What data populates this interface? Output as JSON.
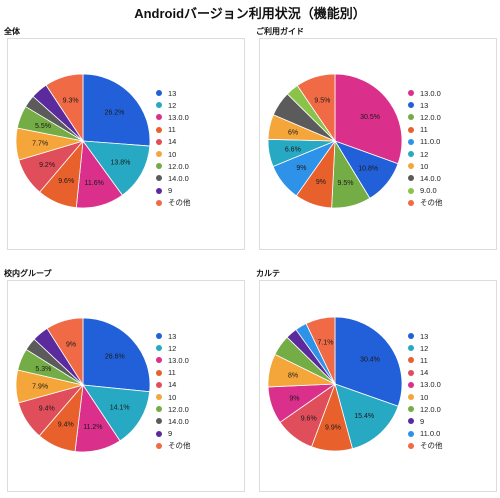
{
  "page_title": "Androidバージョン利用状況（機能別）",
  "chart_data": [
    {
      "type": "pie",
      "title": "全体",
      "labels": [
        "13",
        "12",
        "13.0.0",
        "11",
        "14",
        "10",
        "12.0.0",
        "14.0.0",
        "9",
        "その他"
      ],
      "values": [
        26.2,
        13.8,
        11.6,
        9.6,
        9.2,
        7.7,
        5.5,
        3.0,
        4.1,
        9.3
      ],
      "data_labels": [
        "26.2%",
        "13.8%",
        "11.6%",
        "9.6%",
        "9.2%",
        "7.7%",
        "5.5%",
        "",
        "",
        "9.3%"
      ],
      "colors": [
        "#2160d8",
        "#27a9c3",
        "#db2f8c",
        "#e8612c",
        "#e04e5b",
        "#f4a63a",
        "#74ac45",
        "#5b5b5b",
        "#5b2b9e",
        "#ef6a45"
      ],
      "legend_position": "right"
    },
    {
      "type": "pie",
      "title": "ご利用ガイド",
      "labels": [
        "13.0.0",
        "13",
        "12.0.0",
        "11",
        "11.0.0",
        "12",
        "10",
        "14.0.0",
        "9.0.0",
        "その他"
      ],
      "values": [
        30.5,
        10.8,
        9.5,
        9.0,
        9.0,
        6.6,
        6.0,
        6.0,
        3.1,
        9.5
      ],
      "data_labels": [
        "30.5%",
        "10.8%",
        "9.5%",
        "9%",
        "9%",
        "6.6%",
        "6%",
        "",
        "",
        "9.5%"
      ],
      "colors": [
        "#db2f8c",
        "#2160d8",
        "#74ac45",
        "#e8612c",
        "#2e92e8",
        "#27a9c3",
        "#f4a63a",
        "#5b5b5b",
        "#8bc34a",
        "#ef6a45"
      ],
      "legend_position": "right"
    },
    {
      "type": "pie",
      "title": "校内グループ",
      "labels": [
        "13",
        "12",
        "13.0.0",
        "11",
        "14",
        "10",
        "12.0.0",
        "14.0.0",
        "9",
        "その他"
      ],
      "values": [
        26.6,
        14.1,
        11.2,
        9.4,
        9.4,
        7.9,
        5.3,
        3.1,
        4.0,
        9.0
      ],
      "data_labels": [
        "26.6%",
        "14.1%",
        "11.2%",
        "9.4%",
        "9.4%",
        "7.9%",
        "5.3%",
        "",
        "",
        "9%"
      ],
      "colors": [
        "#2160d8",
        "#27a9c3",
        "#db2f8c",
        "#e8612c",
        "#e04e5b",
        "#f4a63a",
        "#74ac45",
        "#5b5b5b",
        "#5b2b9e",
        "#ef6a45"
      ],
      "legend_position": "right"
    },
    {
      "type": "pie",
      "title": "カルテ",
      "labels": [
        "13",
        "12",
        "11",
        "14",
        "13.0.0",
        "10",
        "12.0.0",
        "9",
        "11.0.0",
        "その他"
      ],
      "values": [
        30.4,
        15.4,
        9.9,
        9.6,
        9.0,
        8.0,
        5.0,
        2.8,
        2.8,
        7.1
      ],
      "data_labels": [
        "30.4%",
        "15.4%",
        "9.9%",
        "9.6%",
        "9%",
        "8%",
        "",
        "",
        "",
        "7.1%"
      ],
      "colors": [
        "#2160d8",
        "#27a9c3",
        "#e8612c",
        "#e04e5b",
        "#db2f8c",
        "#f4a63a",
        "#74ac45",
        "#5b2b9e",
        "#2e92e8",
        "#ef6a45"
      ],
      "legend_position": "right"
    }
  ]
}
